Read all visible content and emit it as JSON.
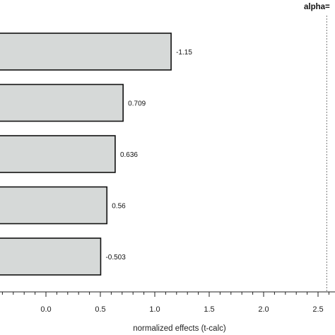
{
  "chart_data": {
    "type": "bar",
    "orientation": "horizontal",
    "categories": [
      "",
      "",
      "",
      "",
      ""
    ],
    "values": [
      -1.15,
      0.709,
      0.636,
      0.56,
      -0.503
    ],
    "bar_lengths": [
      1.15,
      0.709,
      0.636,
      0.56,
      0.503
    ],
    "data_labels": [
      "-1.15",
      "0.709",
      "0.636",
      "0.56",
      "-0.503"
    ],
    "xlabel": "normalized effects (t-calc)",
    "xticks": [
      "0.0",
      "0.5",
      "1.0",
      "1.5",
      "2.0",
      "2.5"
    ],
    "xtick_values": [
      0,
      0.5,
      1,
      1.5,
      2,
      2.5
    ],
    "xlim": [
      -0.4,
      2.6
    ],
    "alpha_label": "alpha=",
    "alpha_line_value": 2.58,
    "grid": false,
    "colors": {
      "bar_fill": "#d6d9d8",
      "bar_edge": "#111111",
      "ref_line": "#777777"
    }
  }
}
